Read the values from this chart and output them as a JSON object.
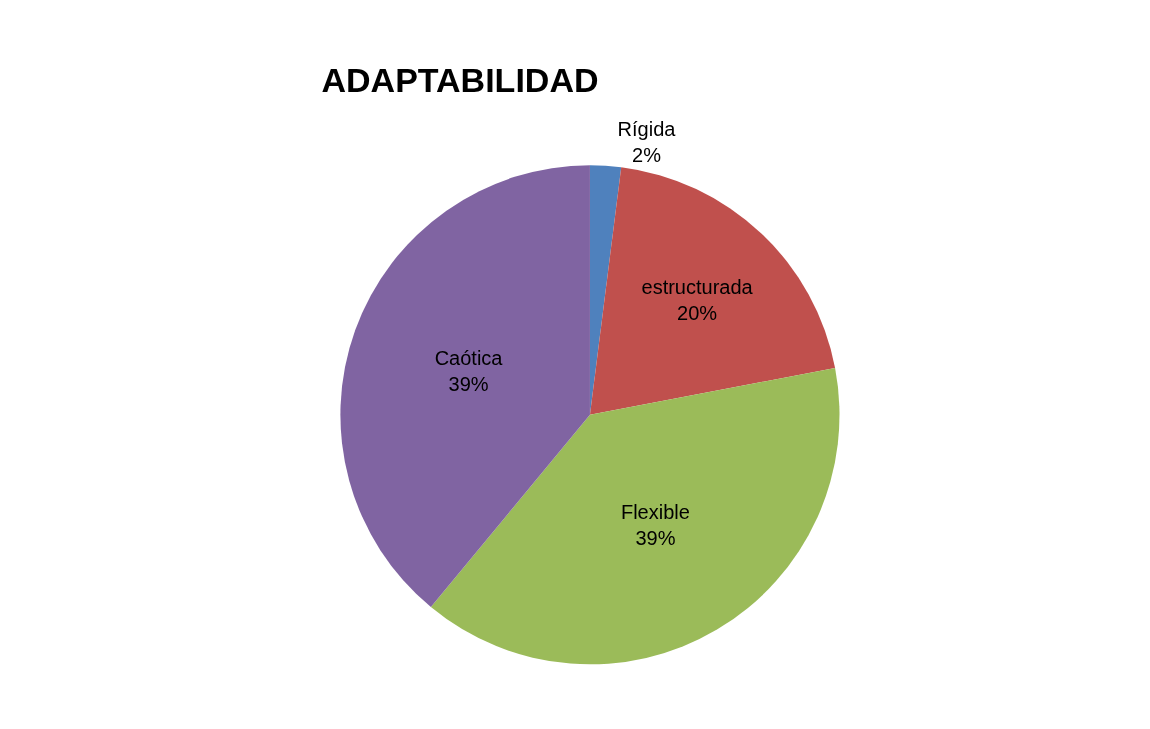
{
  "chart_data": {
    "type": "pie",
    "title": "ADAPTABILIDAD",
    "categories": [
      "Rígida",
      "estructurada",
      "Flexible",
      "Caótica"
    ],
    "values": [
      2,
      20,
      39,
      39
    ],
    "value_labels": [
      "2%",
      "20%",
      "39%",
      "39%"
    ],
    "colors": [
      "#4f81bd",
      "#c0504d",
      "#9bbb59",
      "#8064a2"
    ],
    "legend": false
  }
}
